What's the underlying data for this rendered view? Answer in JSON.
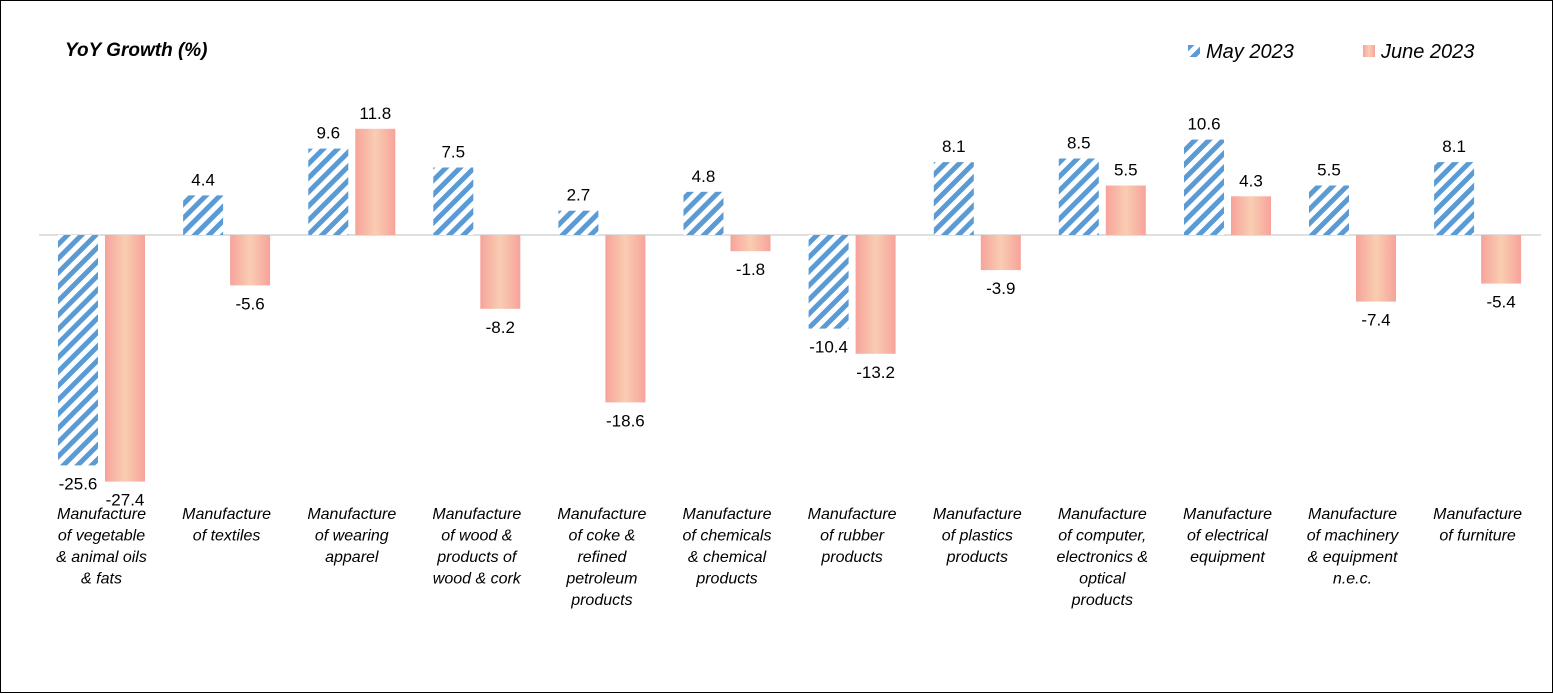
{
  "chart_data": {
    "type": "bar",
    "title": "YoY Growth (%)",
    "categories": [
      [
        "Manufacture",
        "of vegetable",
        "& animal oils",
        "& fats"
      ],
      [
        "Manufacture",
        "of textiles"
      ],
      [
        "Manufacture",
        "of wearing",
        "apparel"
      ],
      [
        "Manufacture",
        "of wood &",
        "products of",
        "wood & cork"
      ],
      [
        "Manufacture",
        "of coke &",
        "refined",
        "petroleum",
        "products"
      ],
      [
        "Manufacture",
        "of chemicals",
        "& chemical",
        "products"
      ],
      [
        "Manufacture",
        "of rubber",
        "products"
      ],
      [
        "Manufacture",
        "of plastics",
        "products"
      ],
      [
        "Manufacture",
        "of computer,",
        "electronics &",
        "optical",
        "products"
      ],
      [
        "Manufacture",
        "of electrical",
        "equipment"
      ],
      [
        "Manufacture",
        "of machinery",
        "& equipment",
        "n.e.c."
      ],
      [
        "Manufacture",
        "of furniture"
      ]
    ],
    "series": [
      {
        "name": "May 2023",
        "values": [
          -25.6,
          4.4,
          9.6,
          7.5,
          2.7,
          4.8,
          -10.4,
          8.1,
          8.5,
          10.6,
          5.5,
          8.1
        ],
        "color": "#5b9bd5",
        "pattern": "diagonal-stripes"
      },
      {
        "name": "June 2023",
        "values": [
          -27.4,
          -5.6,
          11.8,
          -8.2,
          -18.6,
          -1.8,
          -13.2,
          -3.9,
          5.5,
          4.3,
          -7.4,
          -5.4
        ],
        "color": "#f8a8a0",
        "pattern": "gradient"
      }
    ],
    "legend_position": "top-right",
    "grid": false
  }
}
